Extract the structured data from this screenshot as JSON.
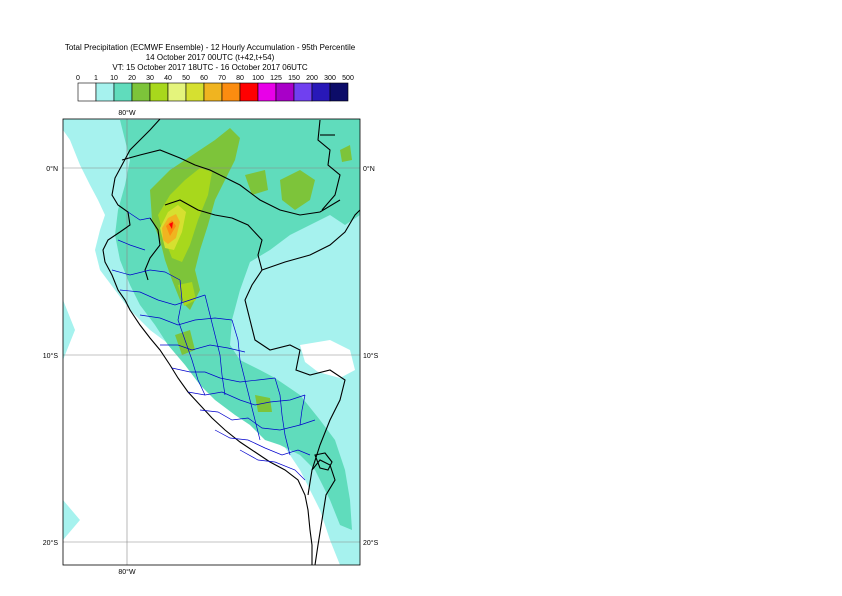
{
  "title": {
    "line1": "Total Precipitation (ECMWF Ensemble) - 12 Hourly Accumulation - 95th Percentile",
    "line2": "14 October 2017 00UTC (t+42,t+54)",
    "line3": "VT: 15 October 2017 18UTC - 16 October 2017 06UTC"
  },
  "legend": {
    "levels": [
      "0",
      "1",
      "10",
      "20",
      "30",
      "40",
      "50",
      "60",
      "70",
      "80",
      "100",
      "125",
      "150",
      "200",
      "300",
      "500"
    ],
    "colors": [
      "#ffffff",
      "#a6f2ee",
      "#60dcbc",
      "#7dc43a",
      "#a8d81c",
      "#e4f47c",
      "#d6e030",
      "#f0b420",
      "#fb8c10",
      "#ff0000",
      "#e800e8",
      "#a800c8",
      "#7040f0",
      "#2818b8",
      "#0c0c68"
    ]
  },
  "map": {
    "lon_labels": [
      "80°W",
      "80°W"
    ],
    "lat_labels": [
      "0°N",
      "0°N",
      "10°S",
      "10°S",
      "20°S",
      "20°S"
    ],
    "colors": {
      "border_country": "#000000",
      "border_region": "#0000cc",
      "grid": "#888888"
    }
  }
}
